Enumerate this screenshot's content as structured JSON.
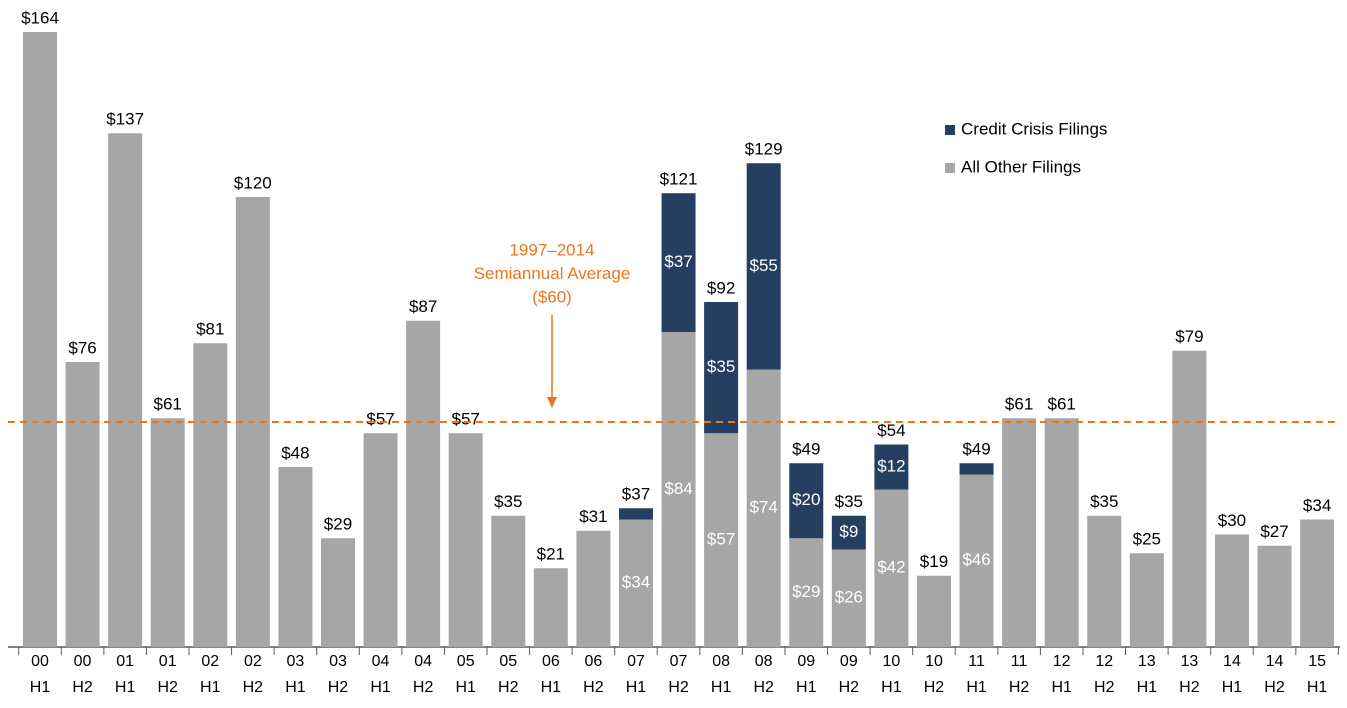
{
  "chart_data": {
    "type": "stacked_bar",
    "categories": [
      [
        "00",
        "H1"
      ],
      [
        "00",
        "H2"
      ],
      [
        "01",
        "H1"
      ],
      [
        "01",
        "H2"
      ],
      [
        "02",
        "H1"
      ],
      [
        "02",
        "H2"
      ],
      [
        "03",
        "H1"
      ],
      [
        "03",
        "H2"
      ],
      [
        "04",
        "H1"
      ],
      [
        "04",
        "H2"
      ],
      [
        "05",
        "H1"
      ],
      [
        "05",
        "H2"
      ],
      [
        "06",
        "H1"
      ],
      [
        "06",
        "H2"
      ],
      [
        "07",
        "H1"
      ],
      [
        "07",
        "H2"
      ],
      [
        "08",
        "H1"
      ],
      [
        "08",
        "H2"
      ],
      [
        "09",
        "H1"
      ],
      [
        "09",
        "H2"
      ],
      [
        "10",
        "H1"
      ],
      [
        "10",
        "H2"
      ],
      [
        "11",
        "H1"
      ],
      [
        "11",
        "H2"
      ],
      [
        "12",
        "H1"
      ],
      [
        "12",
        "H2"
      ],
      [
        "13",
        "H1"
      ],
      [
        "13",
        "H2"
      ],
      [
        "14",
        "H1"
      ],
      [
        "14",
        "H2"
      ],
      [
        "15",
        "H1"
      ]
    ],
    "series": [
      {
        "name": "Credit Crisis Filings",
        "color": "#243f60",
        "values": [
          null,
          null,
          null,
          null,
          null,
          null,
          null,
          null,
          null,
          null,
          null,
          null,
          null,
          null,
          3,
          37,
          35,
          55,
          20,
          9,
          12,
          null,
          3,
          null,
          null,
          null,
          null,
          null,
          null,
          null,
          null
        ],
        "value_labels": [
          null,
          null,
          null,
          null,
          null,
          null,
          null,
          null,
          null,
          null,
          null,
          null,
          null,
          null,
          null,
          "$37",
          "$35",
          "$55",
          "$20",
          "$9",
          "$12",
          null,
          null,
          null,
          null,
          null,
          null,
          null,
          null,
          null,
          null
        ]
      },
      {
        "name": "All Other Filings",
        "color": "#a6a6a6",
        "values": [
          164,
          76,
          137,
          61,
          81,
          120,
          48,
          29,
          57,
          87,
          57,
          35,
          21,
          31,
          34,
          84,
          57,
          74,
          29,
          26,
          42,
          19,
          46,
          61,
          61,
          35,
          25,
          79,
          30,
          27,
          34
        ],
        "value_labels": [
          null,
          null,
          null,
          null,
          null,
          null,
          null,
          null,
          null,
          null,
          null,
          null,
          null,
          null,
          "$34",
          "$84",
          "$57",
          "$74",
          "$29",
          "$26",
          "$42",
          null,
          "$46",
          null,
          null,
          null,
          null,
          null,
          null,
          null,
          null
        ]
      }
    ],
    "totals": [
      164,
      76,
      137,
      61,
      81,
      120,
      48,
      29,
      57,
      87,
      57,
      35,
      21,
      31,
      37,
      121,
      92,
      129,
      49,
      35,
      54,
      19,
      49,
      61,
      61,
      35,
      25,
      79,
      30,
      27,
      34
    ],
    "total_labels": [
      "$164",
      "$76",
      "$137",
      "$61",
      "$81",
      "$120",
      "$48",
      "$29",
      "$57",
      "$87",
      "$57",
      "$35",
      "$21",
      "$31",
      "$37",
      "$121",
      "$92",
      "$129",
      "$49",
      "$35",
      "$54",
      "$19",
      "$49",
      "$61",
      "$61",
      "$35",
      "$25",
      "$79",
      "$30",
      "$27",
      "$34"
    ],
    "average": 60,
    "average_color": "#e87722",
    "annotation": [
      "1997–2014",
      "Semiannual Average",
      "($60)"
    ]
  }
}
